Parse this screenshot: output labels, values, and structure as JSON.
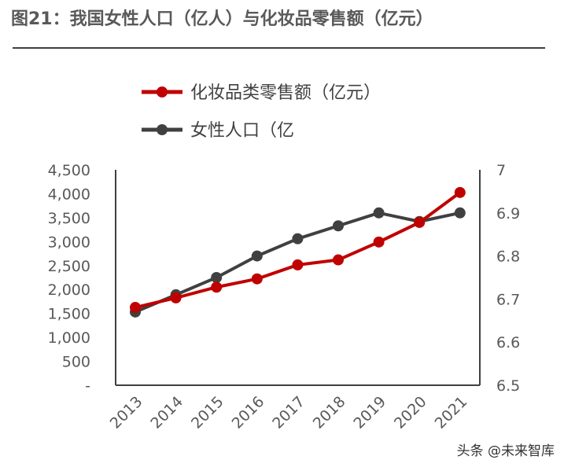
{
  "title": "图21：我国女性人口（亿人）与化妆品零售额（亿元）",
  "watermark": "头条 @未来智库",
  "colors": {
    "cosmetics": "#c00000",
    "population": "#404040",
    "axis": "#404040",
    "text": "#595959"
  },
  "chart_data": {
    "type": "line",
    "categories": [
      "2013",
      "2014",
      "2015",
      "2016",
      "2017",
      "2018",
      "2019",
      "2020",
      "2021"
    ],
    "series": [
      {
        "name": "化妆品类零售额（亿元）",
        "axis": "left",
        "values": [
          1625,
          1825,
          2049,
          2222,
          2514,
          2619,
          2992,
          3400,
          4026
        ]
      },
      {
        "name": "女性人口（亿",
        "axis": "right",
        "values": [
          6.67,
          6.71,
          6.75,
          6.8,
          6.84,
          6.87,
          6.9,
          6.88,
          6.9
        ]
      }
    ],
    "y_left": {
      "min": 0,
      "max": 4500,
      "step": 500,
      "tick_labels": [
        "-",
        "500",
        "1,000",
        "1,500",
        "2,000",
        "2,500",
        "3,000",
        "3,500",
        "4,000",
        "4,500"
      ]
    },
    "y_right": {
      "min": 6.5,
      "max": 7,
      "step": 0.1,
      "tick_labels": [
        "6.5",
        "6.6",
        "6.7",
        "6.8",
        "6.9",
        "7"
      ]
    },
    "legend_position": "top",
    "grid": false
  }
}
